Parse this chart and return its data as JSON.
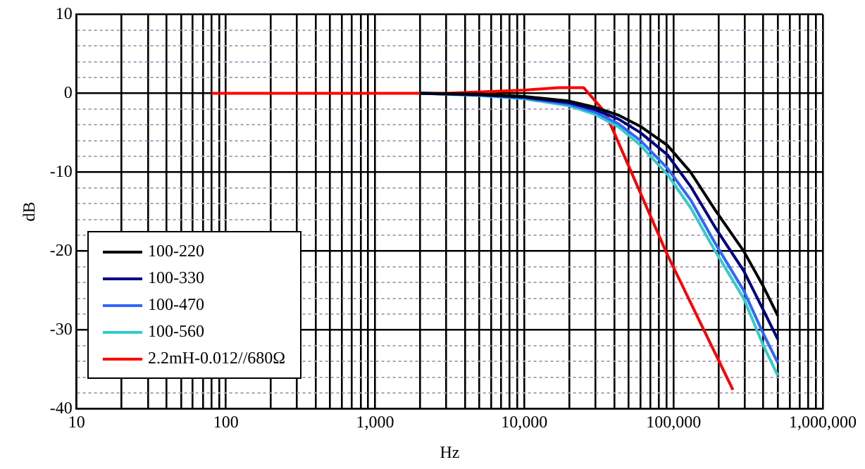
{
  "chart_data": {
    "type": "line",
    "xlabel": "Hz",
    "ylabel": "dB",
    "log": "x",
    "grid": true,
    "legend": "bottom left",
    "marker": "none",
    "line_style": "solid",
    "xlim": [
      10,
      1000000
    ],
    "xticks": [
      10,
      {
        "value": 20,
        "label": null
      },
      {
        "value": 30,
        "label": null
      },
      {
        "value": 40,
        "label": null
      },
      {
        "value": 50,
        "label": null
      },
      {
        "value": 60,
        "label": null
      },
      {
        "value": 70,
        "label": null
      },
      {
        "value": 80,
        "label": null
      },
      {
        "value": 90,
        "label": null
      },
      100,
      {
        "value": 200,
        "label": null
      },
      {
        "value": 300,
        "label": null
      },
      {
        "value": 400,
        "label": null
      },
      {
        "value": 500,
        "label": null
      },
      {
        "value": 600,
        "label": null
      },
      {
        "value": 700,
        "label": null
      },
      {
        "value": 800,
        "label": null
      },
      {
        "value": 900,
        "label": null
      },
      {
        "value": 1000,
        "label": "1,000"
      },
      {
        "value": 2000,
        "label": null
      },
      {
        "value": 3000,
        "label": null
      },
      {
        "value": 4000,
        "label": null
      },
      {
        "value": 5000,
        "label": null
      },
      {
        "value": 6000,
        "label": null
      },
      {
        "value": 7000,
        "label": null
      },
      {
        "value": 8000,
        "label": null
      },
      {
        "value": 9000,
        "label": null
      },
      {
        "value": 10000,
        "label": "10,000"
      },
      {
        "value": 20000,
        "label": null
      },
      {
        "value": 30000,
        "label": null
      },
      {
        "value": 40000,
        "label": null
      },
      {
        "value": 50000,
        "label": null
      },
      {
        "value": 60000,
        "label": null
      },
      {
        "value": 70000,
        "label": null
      },
      {
        "value": 80000,
        "label": null
      },
      {
        "value": 90000,
        "label": null
      },
      {
        "value": 100000,
        "label": "100,000"
      },
      {
        "value": 200000,
        "label": null
      },
      {
        "value": 300000,
        "label": null
      },
      {
        "value": 400000,
        "label": null
      },
      {
        "value": 500000,
        "label": null
      },
      {
        "value": 600000,
        "label": null
      },
      {
        "value": 700000,
        "label": null
      },
      {
        "value": 800000,
        "label": null
      },
      {
        "value": 900000,
        "label": null
      },
      {
        "value": 1000000,
        "label": "1,000,000"
      }
    ],
    "ylim": [
      -40,
      10
    ],
    "yticks": [
      -40,
      {
        "value": -38,
        "label": null
      },
      {
        "value": -36,
        "label": null
      },
      {
        "value": -34,
        "label": null
      },
      {
        "value": -32,
        "label": null
      },
      -30,
      {
        "value": -28,
        "label": null
      },
      {
        "value": -26,
        "label": null
      },
      {
        "value": -24,
        "label": null
      },
      {
        "value": -22,
        "label": null
      },
      -20,
      {
        "value": -18,
        "label": null
      },
      {
        "value": -16,
        "label": null
      },
      {
        "value": -14,
        "label": null
      },
      {
        "value": -12,
        "label": null
      },
      -10,
      {
        "value": -8,
        "label": null
      },
      {
        "value": -6,
        "label": null
      },
      {
        "value": -4,
        "label": null
      },
      {
        "value": -2,
        "label": null
      },
      0,
      {
        "value": 2,
        "label": null
      },
      {
        "value": 4,
        "label": null
      },
      {
        "value": 6,
        "label": null
      },
      {
        "value": 8,
        "label": null
      },
      10
    ],
    "series": [
      {
        "name": "100-220",
        "color": "#000000",
        "x": [
          2000,
          5000,
          10000,
          20000,
          30000,
          43000,
          60000,
          91000,
          130000,
          190000,
          295000,
          400000,
          500000
        ],
        "values": [
          0,
          -0.1,
          -0.4,
          -1.0,
          -1.8,
          -2.8,
          -4.2,
          -6.6,
          -10,
          -14.8,
          -20,
          -24.5,
          -28.2
        ]
      },
      {
        "name": "100-330",
        "color": "#000080",
        "x": [
          2000,
          5000,
          10000,
          20000,
          30000,
          43000,
          60000,
          91000,
          130000,
          190000,
          295000,
          400000,
          500000
        ],
        "values": [
          0,
          -0.2,
          -0.5,
          -1.2,
          -2.1,
          -3.3,
          -5.0,
          -7.8,
          -11.8,
          -17,
          -22.5,
          -27.5,
          -31.2
        ]
      },
      {
        "name": "100-470",
        "color": "#3366ff",
        "x": [
          2000,
          5000,
          10000,
          20000,
          30000,
          43000,
          60000,
          91000,
          130000,
          190000,
          295000,
          400000,
          500000
        ],
        "values": [
          0,
          -0.2,
          -0.6,
          -1.4,
          -2.4,
          -3.9,
          -6.0,
          -9.5,
          -13.5,
          -19,
          -25,
          -30.5,
          -34.2
        ]
      },
      {
        "name": "100-560",
        "color": "#33cccc",
        "x": [
          2000,
          5000,
          10000,
          20000,
          30000,
          43000,
          60000,
          91000,
          130000,
          190000,
          295000,
          400000,
          500000
        ],
        "values": [
          0,
          -0.3,
          -0.7,
          -1.6,
          -2.7,
          -4.3,
          -6.6,
          -10.3,
          -14.5,
          -20,
          -26,
          -32,
          -35.8
        ]
      },
      {
        "name": "2.2mH-0.012//680Ω",
        "color": "#ff0000",
        "x": [
          80,
          1000,
          3000,
          10000,
          17000,
          25000,
          35000,
          91000,
          250000
        ],
        "values": [
          0,
          0,
          0,
          0.4,
          0.7,
          0.7,
          -2.5,
          -20.5,
          -37.6
        ]
      }
    ]
  }
}
